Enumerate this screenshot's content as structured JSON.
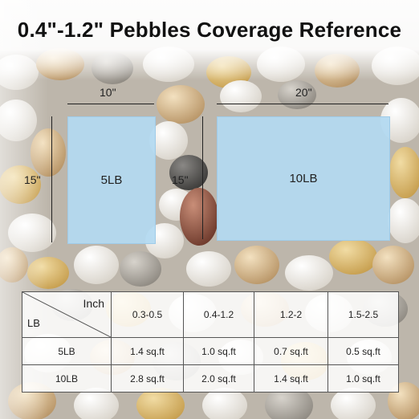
{
  "title": "0.4\"-1.2\" Pebbles Coverage Reference",
  "coverage_boxes": [
    {
      "label": "5LB",
      "width_label": "10\"",
      "height_label": "15\""
    },
    {
      "label": "10LB",
      "width_label": "20\"",
      "height_label": "15\""
    }
  ],
  "table": {
    "corner_top": "Inch",
    "corner_bottom": "LB",
    "sizes": [
      "0.3-0.5",
      "0.4-1.2",
      "1.2-2",
      "1.5-2.5"
    ],
    "rows": [
      {
        "weight": "5LB",
        "values": [
          "1.4 sq.ft",
          "1.0 sq.ft",
          "0.7 sq.ft",
          "0.5 sq.ft"
        ]
      },
      {
        "weight": "10LB",
        "values": [
          "2.8 sq.ft",
          "2.0 sq.ft",
          "1.4 sq.ft",
          "1.0 sq.ft"
        ]
      }
    ]
  },
  "colors": {
    "box_fill": "#b3d9f1",
    "text": "#111111"
  }
}
